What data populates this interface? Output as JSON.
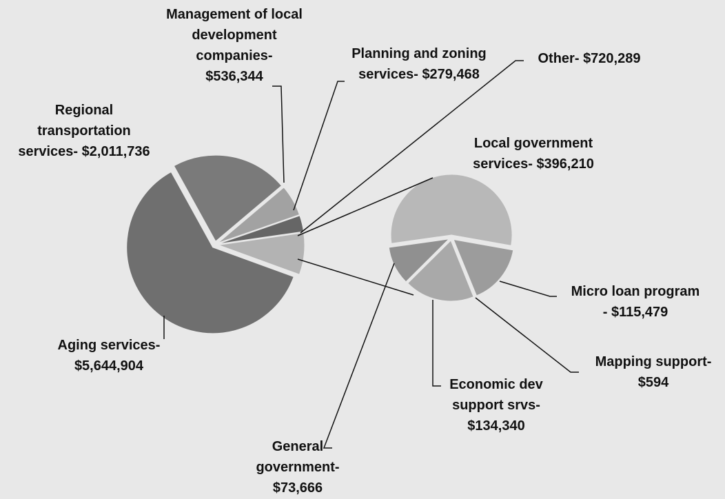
{
  "chart_data": {
    "type": "pie_of_pie",
    "pies": [
      {
        "categories": [
          "Aging services-",
          "Regional transportation services-",
          "Management of local development companies-",
          "Planning and zoning services-",
          "Other-"
        ],
        "values": [
          5644904,
          2011736,
          536344,
          279468,
          720289
        ],
        "value_labels": [
          "$5,644,904",
          "$2,011,736",
          "$536,344",
          "$279,468",
          "$720,289"
        ],
        "colors": [
          "#6f6f6f",
          "#7a7a7a",
          "#a2a2a2",
          "#666666",
          "#b3b3b3"
        ]
      },
      {
        "categories": [
          "Local government services-",
          "Micro loan program",
          "Mapping  support-",
          "Economic dev support srvs-",
          "General government-"
        ],
        "values": [
          396210,
          115479,
          594,
          134340,
          73666
        ],
        "value_labels": [
          "$396,210",
          "- $115,479",
          "$594",
          "$134,340",
          "$73,666"
        ],
        "colors": [
          "#b8b8b8",
          "#9c9c9c",
          "#8a8a8a",
          "#a9a9a9",
          "#909090"
        ]
      }
    ]
  }
}
